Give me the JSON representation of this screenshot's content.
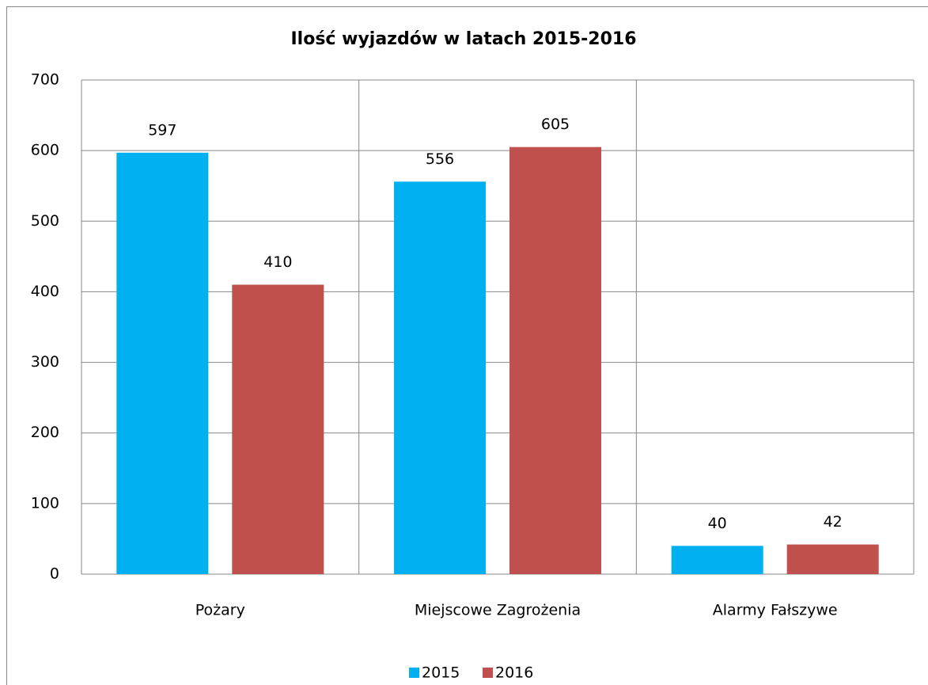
{
  "chart_data": {
    "type": "bar",
    "title": "Ilość wyjazdów w latach 2015-2016",
    "categories": [
      "Pożary",
      "Miejscowe Zagrożenia",
      "Alarmy Fałszywe"
    ],
    "series": [
      {
        "name": "2015",
        "color": "#00b0f0",
        "values": [
          597,
          556,
          40
        ]
      },
      {
        "name": "2016",
        "color": "#c0504d",
        "values": [
          410,
          605,
          42
        ]
      }
    ],
    "ylim": [
      0,
      700
    ],
    "yticks": [
      0,
      100,
      200,
      300,
      400,
      500,
      600,
      700
    ],
    "grid": true,
    "legend": "bottom"
  }
}
